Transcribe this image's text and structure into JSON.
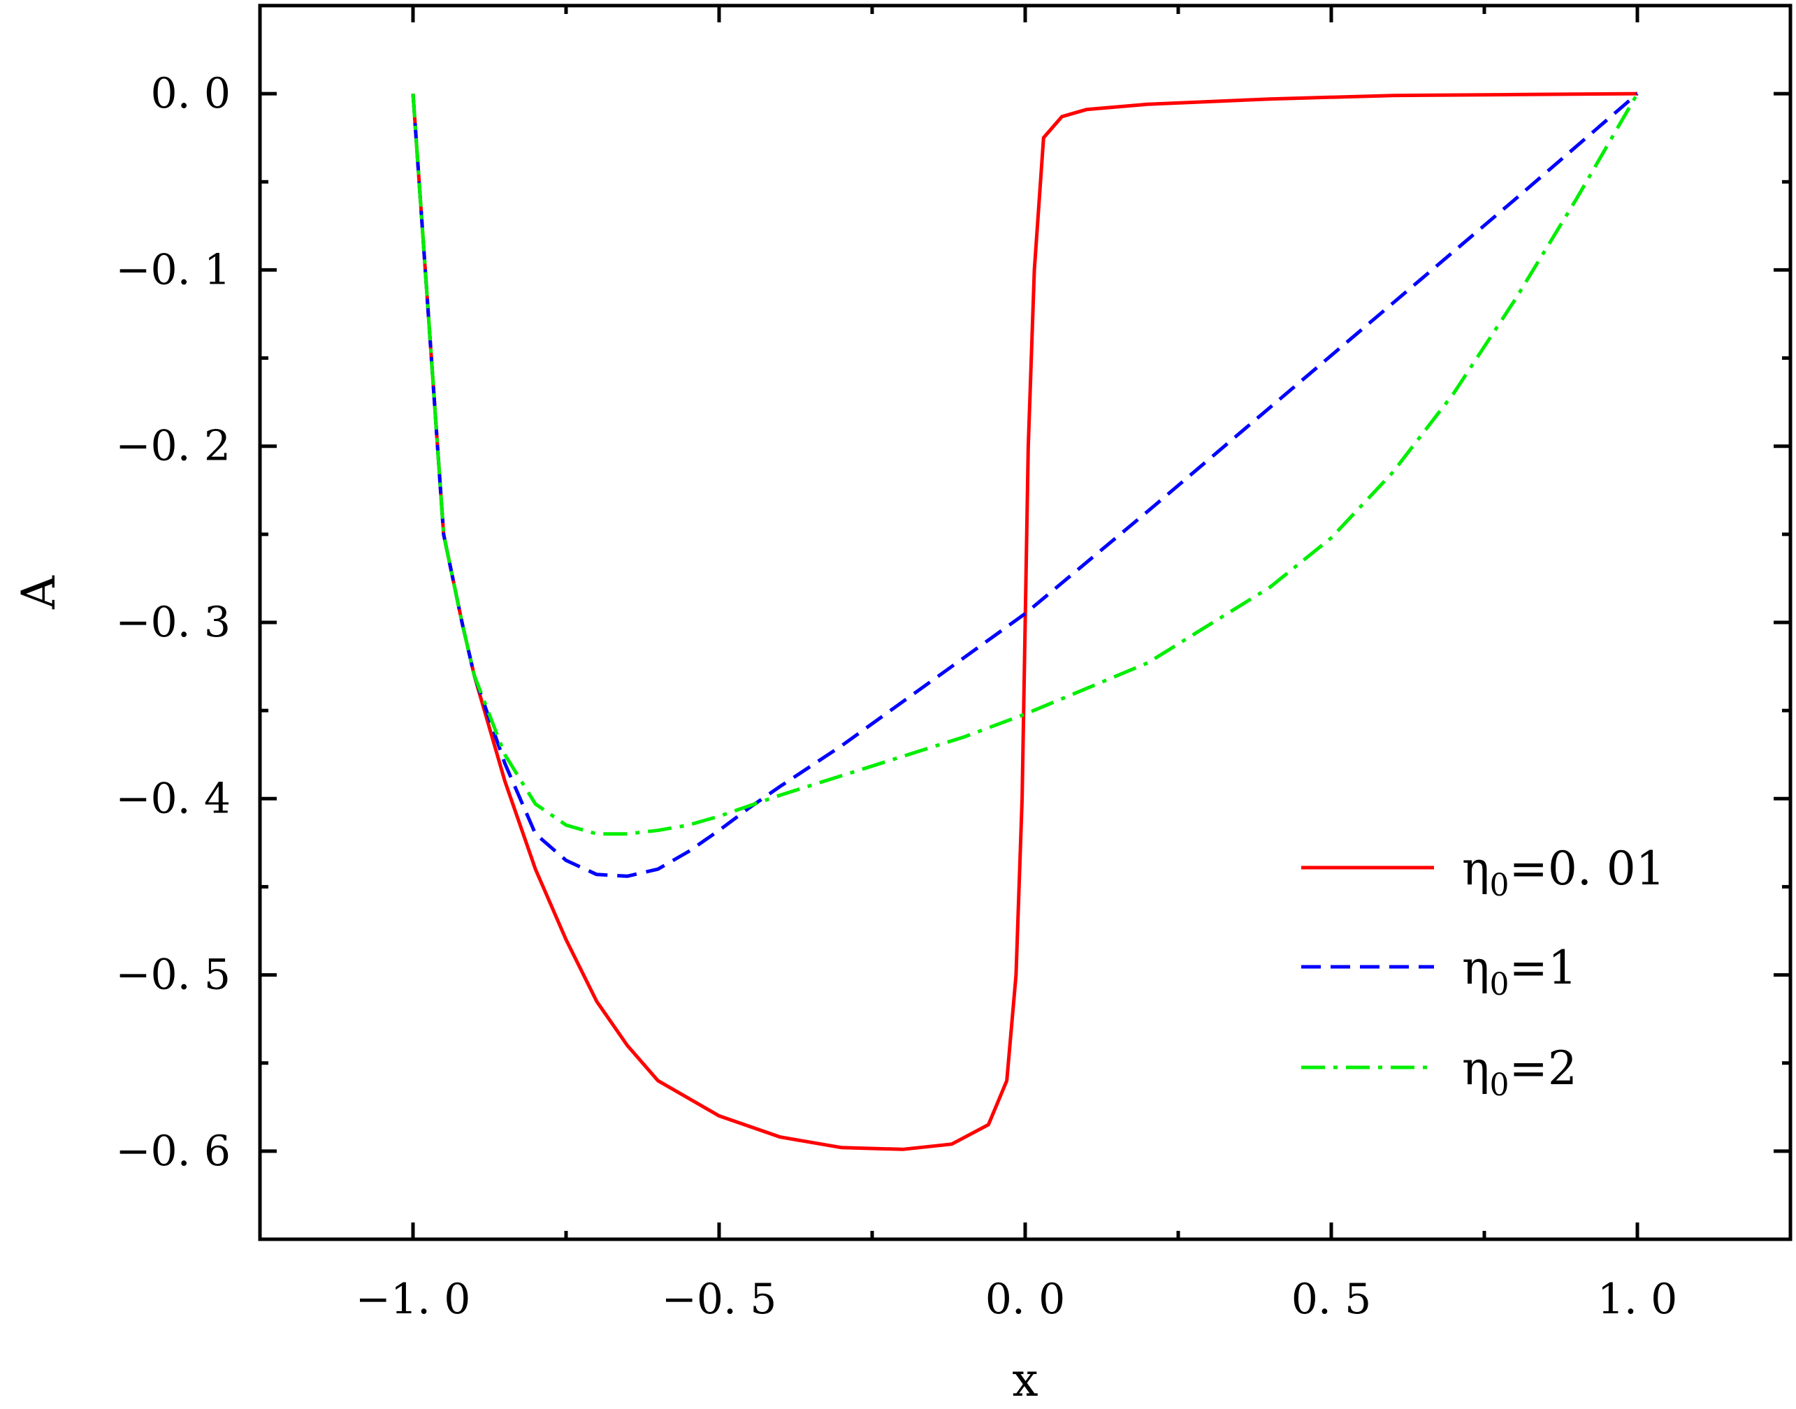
{
  "chart_data": {
    "type": "line",
    "title": "",
    "xlabel": "x",
    "ylabel": "A",
    "xlim": [
      -1.25,
      1.25
    ],
    "ylim": [
      -0.65,
      0.05
    ],
    "xticks": [
      -1.0,
      -0.5,
      0.0,
      0.5,
      1.0
    ],
    "xtick_labels": [
      "−1. 0",
      "−0. 5",
      "0. 0",
      "0. 5",
      "1. 0"
    ],
    "yticks": [
      0.0,
      -0.1,
      -0.2,
      -0.3,
      -0.4,
      -0.5,
      -0.6
    ],
    "ytick_labels": [
      "0. 0",
      "−0. 1",
      "−0. 2",
      "−0. 3",
      "−0. 4",
      "−0. 5",
      "−0. 6"
    ],
    "grid": false,
    "legend_position": "bottom-right",
    "series": [
      {
        "name": "η₀=0. 01",
        "legend_base": "η",
        "legend_sub": "0",
        "legend_rest": "=0. 01",
        "color": "#ff0000",
        "dash": "solid",
        "x": [
          -1.0,
          -0.97,
          -0.95,
          -0.92,
          -0.9,
          -0.85,
          -0.8,
          -0.75,
          -0.7,
          -0.65,
          -0.6,
          -0.5,
          -0.4,
          -0.3,
          -0.2,
          -0.12,
          -0.06,
          -0.03,
          -0.015,
          -0.005,
          0.0,
          0.005,
          0.015,
          0.03,
          0.06,
          0.1,
          0.2,
          0.4,
          0.6,
          0.8,
          1.0
        ],
        "y": [
          0.0,
          -0.15,
          -0.25,
          -0.3,
          -0.33,
          -0.39,
          -0.44,
          -0.48,
          -0.515,
          -0.54,
          -0.56,
          -0.58,
          -0.592,
          -0.598,
          -0.599,
          -0.596,
          -0.585,
          -0.56,
          -0.5,
          -0.4,
          -0.3,
          -0.2,
          -0.1,
          -0.025,
          -0.013,
          -0.009,
          -0.006,
          -0.003,
          -0.001,
          -0.0005,
          0.0
        ]
      },
      {
        "name": "η₀=1",
        "legend_base": "η",
        "legend_sub": "0",
        "legend_rest": "=1",
        "color": "#0000ff",
        "dash": "dashed",
        "x": [
          -1.0,
          -0.97,
          -0.95,
          -0.92,
          -0.9,
          -0.85,
          -0.8,
          -0.75,
          -0.7,
          -0.65,
          -0.6,
          -0.55,
          -0.5,
          -0.45,
          -0.4,
          -0.3,
          -0.2,
          -0.1,
          0.0,
          0.2,
          0.4,
          0.6,
          0.8,
          1.0
        ],
        "y": [
          0.0,
          -0.15,
          -0.25,
          -0.3,
          -0.33,
          -0.38,
          -0.42,
          -0.435,
          -0.443,
          -0.444,
          -0.44,
          -0.43,
          -0.418,
          -0.405,
          -0.393,
          -0.37,
          -0.345,
          -0.32,
          -0.295,
          -0.237,
          -0.178,
          -0.119,
          -0.06,
          0.0
        ]
      },
      {
        "name": "η₀=2",
        "legend_base": "η",
        "legend_sub": "0",
        "legend_rest": "=2",
        "color": "#00ee00",
        "dash": "dashdot",
        "x": [
          -1.0,
          -0.97,
          -0.95,
          -0.92,
          -0.9,
          -0.85,
          -0.8,
          -0.75,
          -0.7,
          -0.65,
          -0.6,
          -0.55,
          -0.5,
          -0.4,
          -0.3,
          -0.2,
          -0.1,
          0.0,
          0.2,
          0.4,
          0.5,
          0.6,
          0.7,
          0.8,
          0.9,
          1.0
        ],
        "y": [
          0.0,
          -0.15,
          -0.25,
          -0.3,
          -0.33,
          -0.375,
          -0.403,
          -0.415,
          -0.42,
          -0.42,
          -0.418,
          -0.415,
          -0.41,
          -0.398,
          -0.387,
          -0.376,
          -0.365,
          -0.352,
          -0.323,
          -0.28,
          -0.252,
          -0.215,
          -0.17,
          -0.117,
          -0.06,
          0.0
        ]
      }
    ]
  }
}
